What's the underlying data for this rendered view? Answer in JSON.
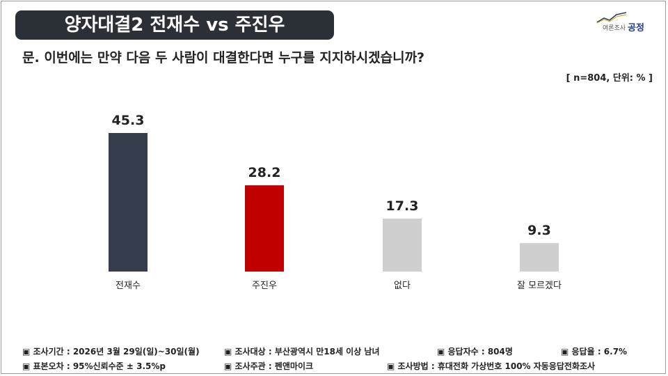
{
  "header": {
    "title": "양자대결2 전재수 vs 주진우",
    "logo": {
      "small_text": "여론조사",
      "brand": "공정"
    }
  },
  "question": "문. 이번에는 만약 다음 두 사람이 대결한다면 누구를 지지하시겠습니까?",
  "meta": "[ n=804, 단위: % ]",
  "colors": {
    "banner": "#2b2f36",
    "bar_1": "#353d4c",
    "bar_2": "#c00000",
    "bar_other": "#d0cfcf"
  },
  "chart_data": {
    "type": "bar",
    "title": "",
    "xlabel": "",
    "ylabel": "",
    "categories": [
      "전재수",
      "주진우",
      "없다",
      "잘 모르겠다"
    ],
    "values": [
      45.3,
      28.2,
      17.3,
      9.3
    ],
    "value_labels": [
      "45.3",
      "28.2",
      "17.3",
      "9.3"
    ],
    "bar_colors": [
      "#353d4c",
      "#c00000",
      "#d0cfcf",
      "#d0cfcf"
    ],
    "ylim": [
      0,
      45.3
    ],
    "grid": false,
    "legend": "none"
  },
  "footer": {
    "row1": [
      "▣ 조사기간 : 2026년 3월 29일(일)~30일(월)",
      "▣ 조사대상 : 부산광역시 만18세 이상 남녀",
      "▣ 응답자수 : 804명",
      "▣ 응답율 : 6.7%"
    ],
    "row2": [
      "▣ 표본오차 : 95%신뢰수준 ± 3.5%p",
      "▣ 조사주관 : 펜앤마이크",
      "▣ 조사방법 : 휴대전화 가상번호 100% 자동응답전화조사"
    ]
  }
}
